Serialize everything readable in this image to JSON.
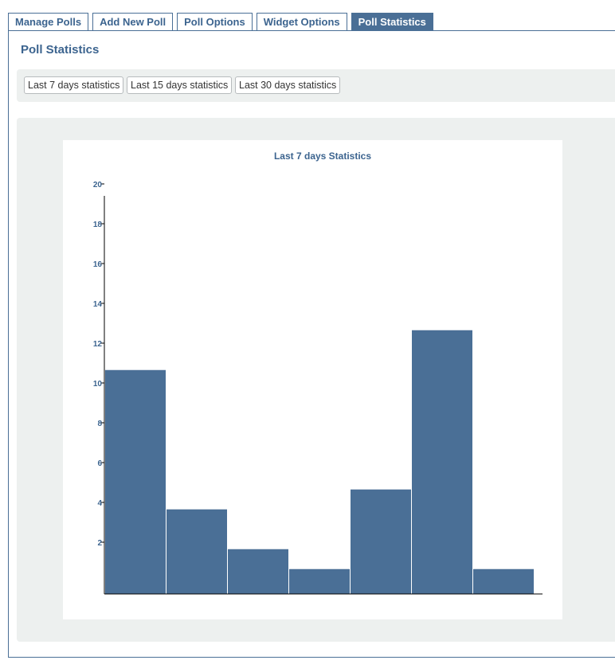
{
  "tabs": [
    {
      "label": "Manage Polls",
      "active": false
    },
    {
      "label": "Add New Poll",
      "active": false
    },
    {
      "label": "Poll Options",
      "active": false
    },
    {
      "label": "Widget Options",
      "active": false
    },
    {
      "label": "Poll Statistics",
      "active": true
    }
  ],
  "page": {
    "title": "Poll Statistics"
  },
  "buttons": {
    "last7": "Last 7 days statistics",
    "last15": "Last 15 days statistics",
    "last30": "Last 30 days statistics"
  },
  "colors": {
    "accent": "#4a6f96",
    "bar": "#4a6f96",
    "panel_bg": "#edf0ef",
    "axis_text": "#3c648f"
  },
  "chart_data": {
    "type": "bar",
    "title": "Last 7 days Statistics",
    "xlabel": "",
    "ylabel": "",
    "ylim": [
      0,
      20
    ],
    "yticks": [
      2,
      4,
      6,
      8,
      10,
      12,
      14,
      16,
      18,
      20
    ],
    "values": [
      11,
      4,
      2,
      1,
      5,
      13,
      1
    ],
    "grid": false
  }
}
